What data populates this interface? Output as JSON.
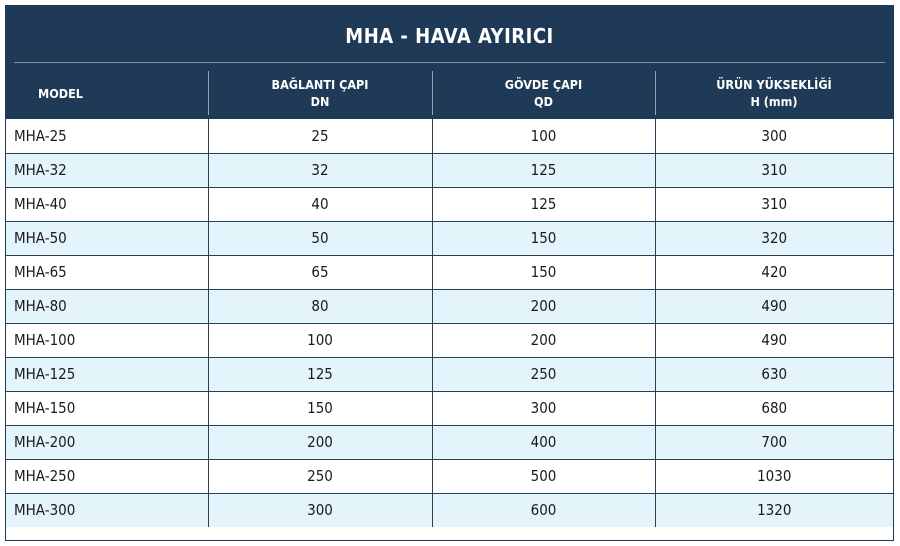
{
  "table": {
    "title": "MHA - HAVA AYIRICI",
    "headers": [
      {
        "line1": "MODEL",
        "line2": ""
      },
      {
        "line1": "BAĞLANTI ÇAPI",
        "line2": "DN"
      },
      {
        "line1": "GÖVDE ÇAPI",
        "line2": "QD"
      },
      {
        "line1": "ÜRÜN YÜKSEKLİĞİ",
        "line2": "H (mm)"
      }
    ],
    "rows": [
      [
        "MHA-25",
        "25",
        "100",
        "300"
      ],
      [
        "MHA-32",
        "32",
        "125",
        "310"
      ],
      [
        "MHA-40",
        "40",
        "125",
        "310"
      ],
      [
        "MHA-50",
        "50",
        "150",
        "320"
      ],
      [
        "MHA-65",
        "65",
        "150",
        "420"
      ],
      [
        "MHA-80",
        "80",
        "200",
        "490"
      ],
      [
        "MHA-100",
        "100",
        "200",
        "490"
      ],
      [
        "MHA-125",
        "125",
        "250",
        "630"
      ],
      [
        "MHA-150",
        "150",
        "300",
        "680"
      ],
      [
        "MHA-200",
        "200",
        "400",
        "700"
      ],
      [
        "MHA-250",
        "250",
        "500",
        "1030"
      ],
      [
        "MHA-300",
        "300",
        "600",
        "1320"
      ]
    ],
    "colors": {
      "header_bg": "#1f3a57",
      "alt_row_bg": "#e3f4fa",
      "row_bg": "#ffffff"
    }
  }
}
